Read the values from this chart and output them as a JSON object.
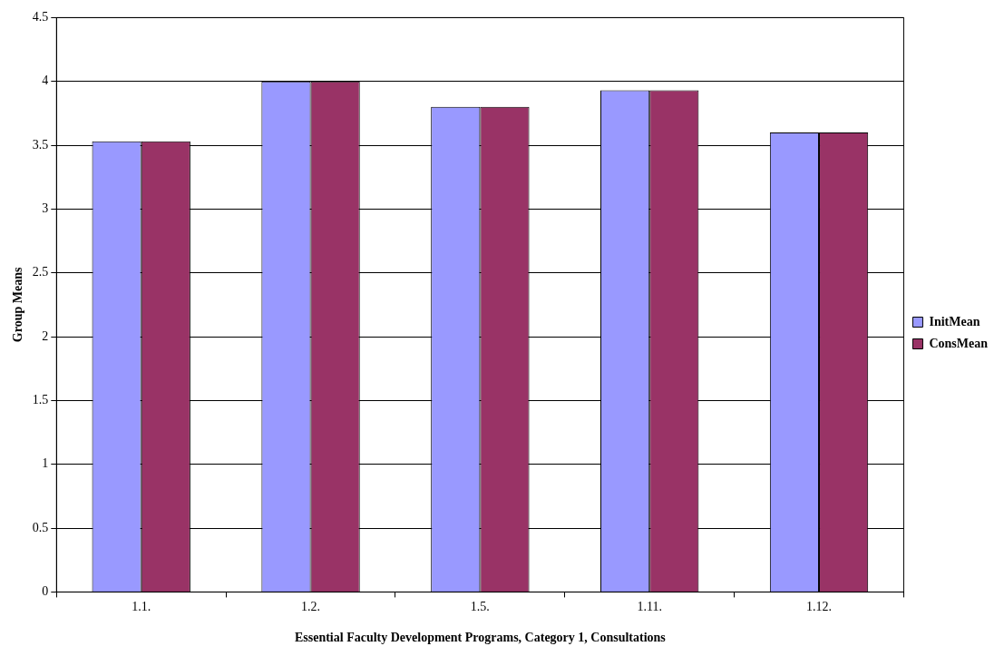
{
  "chart_data": {
    "type": "bar",
    "xlabel": "Essential Faculty Development Programs, Category 1, Consultations",
    "ylabel": "Group Means",
    "categories": [
      "1.1.",
      "1.2.",
      "1.5.",
      "1.11.",
      "1.12."
    ],
    "series": [
      {
        "name": "InitMean",
        "color": "#9999ff",
        "values": [
          3.53,
          4.0,
          3.8,
          3.93,
          3.6
        ]
      },
      {
        "name": "ConsMean",
        "color": "#993366",
        "values": [
          3.53,
          4.0,
          3.8,
          3.93,
          3.6
        ]
      }
    ],
    "ylim": [
      0,
      4.5
    ],
    "yticks": [
      0,
      0.5,
      1,
      1.5,
      2,
      2.5,
      3,
      3.5,
      4,
      4.5
    ],
    "grid": "y",
    "legend": "right"
  }
}
